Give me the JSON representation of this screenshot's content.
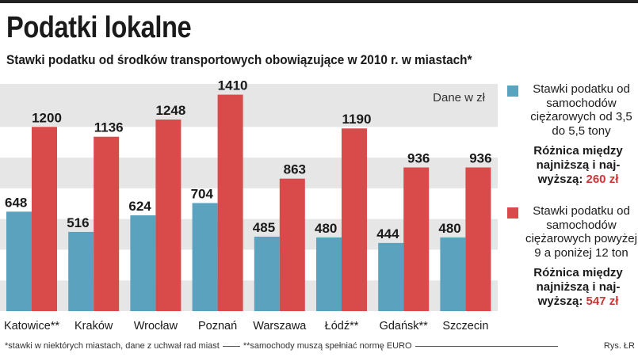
{
  "title": "Podatki lokalne",
  "subtitle": "Stawki podatku od środków transportowych obowiązujące w 2010 r. w miastach*",
  "unit_note": "Dane w zł",
  "colors": {
    "series1": "#5aa2bd",
    "series2": "#d94b4b",
    "band": "#e6e6e6"
  },
  "legend": [
    {
      "label": "Stawki podatku od samochodów ciężarowych od 3,5 do 5,5 tony",
      "diff_label": "Różnica między najniższą i naj-wyższą:",
      "diff_value": "260 zł"
    },
    {
      "label": "Stawki podatku od samochodów ciężarowych powyżej 9 a poniżej 12 ton",
      "diff_label": "Różnica między najniższą i naj-wyższą:",
      "diff_value": "547 zł"
    }
  ],
  "footnote1": "*stawki w niektórych miastach, dane z uchwał rad miast",
  "footnote2": "**samochody muszą spełniać normę EURO",
  "credit": "Rys. ŁR",
  "chart_data": {
    "type": "bar",
    "categories": [
      "Katowice**",
      "Kraków",
      "Wrocław",
      "Poznań",
      "Warszawa",
      "Łódź**",
      "Gdańsk**",
      "Szczecin"
    ],
    "series": [
      {
        "values": [
          648,
          516,
          624,
          704,
          485,
          480,
          444,
          480
        ]
      },
      {
        "values": [
          1200,
          1136,
          1248,
          1410,
          863,
          1190,
          936,
          936
        ]
      }
    ],
    "ylim": [
      0,
      1480
    ],
    "grid": "horizontal bands",
    "legend_position": "right"
  }
}
